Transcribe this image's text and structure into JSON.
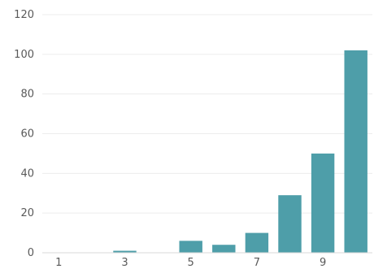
{
  "chart_data": {
    "type": "bar",
    "title": "",
    "xlabel": "",
    "ylabel": "",
    "categories": [
      "1",
      "2",
      "3",
      "4",
      "5",
      "6",
      "7",
      "8",
      "9",
      "10"
    ],
    "x_tick_labels": [
      "1",
      "3",
      "5",
      "7",
      "9"
    ],
    "values": [
      0,
      0,
      1,
      0,
      6,
      4,
      10,
      29,
      50,
      102
    ],
    "ylim": [
      0,
      120
    ],
    "yticks": [
      0,
      20,
      40,
      60,
      80,
      100,
      120
    ],
    "grid": true,
    "legend": "none",
    "bar_color": "#4e9ea9",
    "grid_color": "#ececec",
    "text_color": "#595959"
  }
}
